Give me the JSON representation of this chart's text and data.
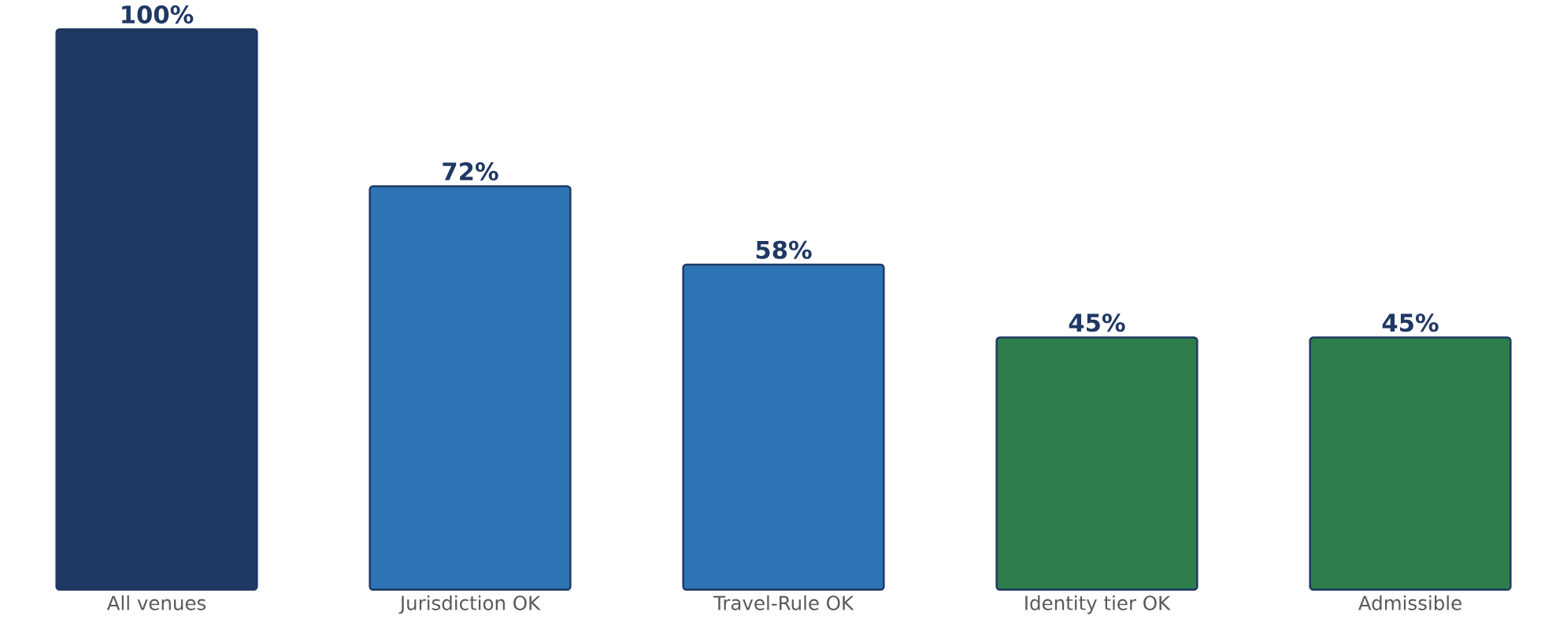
{
  "chart_data": {
    "type": "bar",
    "categories": [
      "All venues",
      "Jurisdiction OK",
      "Travel-Rule OK",
      "Identity tier OK",
      "Admissible"
    ],
    "values": [
      100,
      72,
      58,
      45,
      45
    ],
    "colors": [
      "#1f3864",
      "#2e74b5",
      "#2e74b5",
      "#2e7d4c",
      "#2e7d4c"
    ],
    "value_labels": [
      "100%",
      "72%",
      "58%",
      "45%",
      "45%"
    ]
  }
}
